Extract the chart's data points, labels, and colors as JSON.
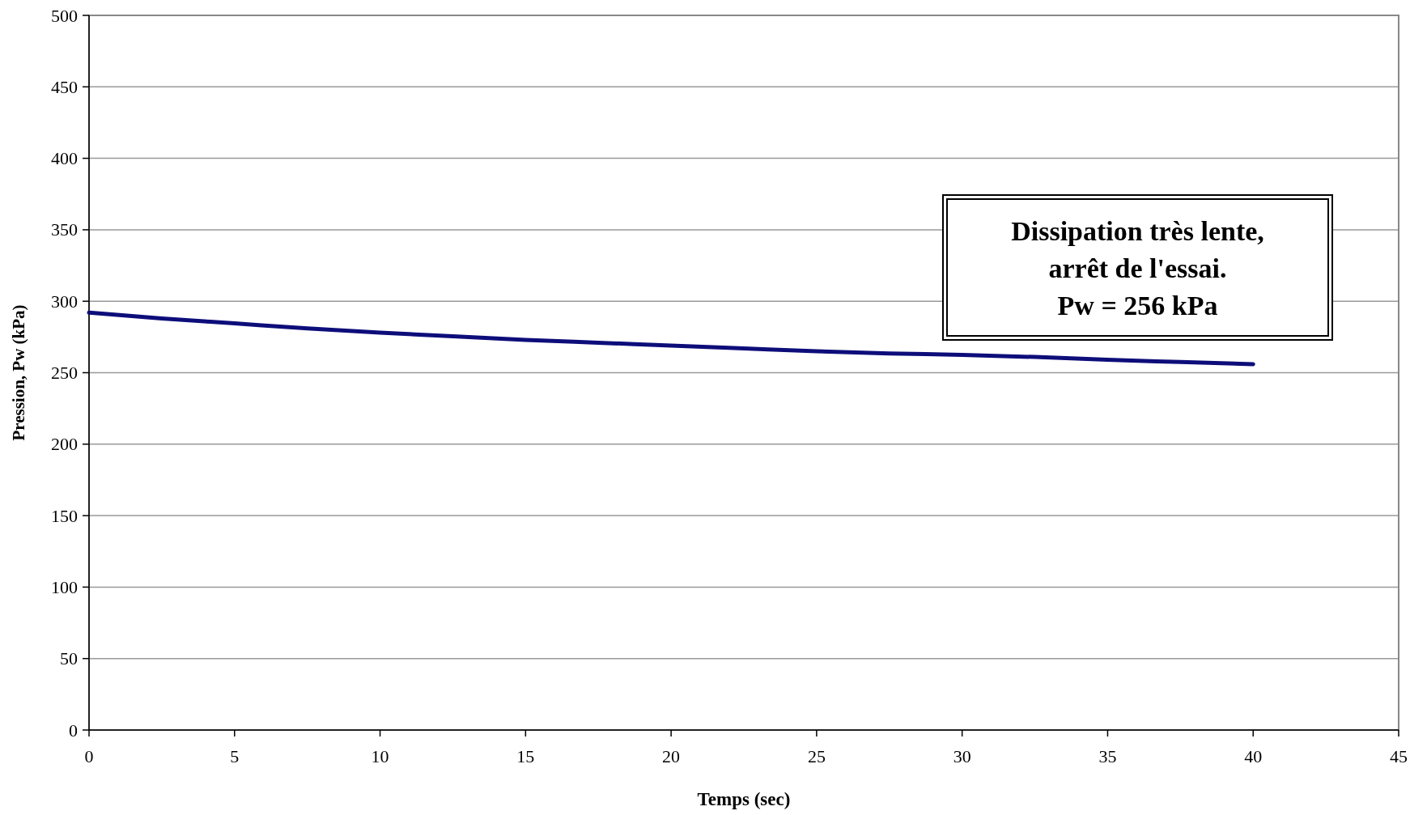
{
  "chart_data": {
    "type": "line",
    "xlabel": "Temps (sec)",
    "ylabel": "Pression, Pw (kPa)",
    "annotations": [
      "Dissipation très lente,\narrêt de l'essai.\nPw = 256 kPa"
    ],
    "x": [
      0,
      2.5,
      5,
      7.5,
      10,
      12.5,
      15,
      17.5,
      20,
      22.5,
      25,
      27.5,
      30,
      32.5,
      35,
      37.5,
      40
    ],
    "series": [
      {
        "color": "#0d0d7a",
        "values": [
          292,
          288,
          284.5,
          281,
          278,
          275.5,
          273,
          271,
          269,
          267,
          265,
          263.5,
          262.5,
          261,
          259,
          257.5,
          256
        ]
      }
    ],
    "xlim": [
      0,
      45
    ],
    "xticks": [
      0,
      5,
      10,
      15,
      20,
      25,
      30,
      35,
      40,
      45
    ],
    "ylim": [
      0,
      500
    ],
    "yticks": [
      0,
      50,
      100,
      150,
      200,
      250,
      300,
      350,
      400,
      450,
      500
    ],
    "grid": "y",
    "marker": "none",
    "line_style": "solid"
  }
}
